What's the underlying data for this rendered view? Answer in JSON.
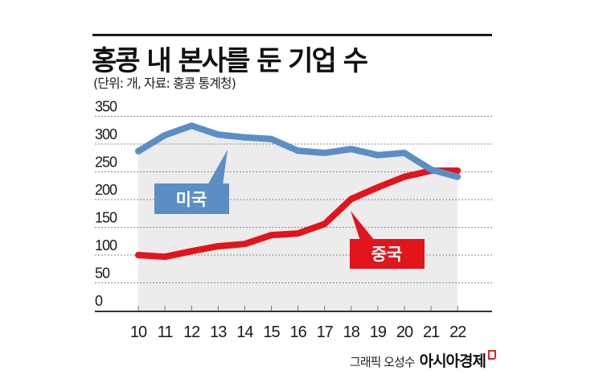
{
  "header": {
    "title": "홍콩 내 본사를 둔 기업 수",
    "subtitle": "(단위: 개, 자료: 홍콩 통계청)"
  },
  "labels": {
    "us": "미국",
    "china": "중국"
  },
  "credit": {
    "author": "그래픽 오성수",
    "brand": "아시아경제"
  },
  "colors": {
    "us": "#5b8ec4",
    "china": "#e2141c",
    "area_fill": "#ececec",
    "grid": "#888888",
    "axis": "#333333"
  },
  "chart_data": {
    "type": "line",
    "title": "홍콩 내 본사를 둔 기업 수",
    "subtitle": "(단위: 개, 자료: 홍콩 통계청)",
    "xlabel": "",
    "ylabel": "",
    "categories": [
      "10",
      "11",
      "12",
      "13",
      "14",
      "15",
      "16",
      "17",
      "18",
      "19",
      "20",
      "21",
      "22"
    ],
    "series": [
      {
        "name": "미국",
        "color": "#5b8ec4",
        "values": [
          287,
          316,
          333,
          317,
          312,
          309,
          288,
          284,
          291,
          280,
          284,
          254,
          241
        ]
      },
      {
        "name": "중국",
        "color": "#e2141c",
        "values": [
          100,
          97,
          107,
          116,
          120,
          136,
          139,
          156,
          201,
          222,
          241,
          252,
          252
        ]
      }
    ],
    "yticks": [
      0,
      50,
      100,
      150,
      200,
      250,
      300,
      350
    ],
    "ylim": [
      0,
      350
    ],
    "grid": true,
    "legend": "inline callout labels",
    "area_fill_under": "미국",
    "annotations": [
      "미국",
      "중국"
    ]
  }
}
